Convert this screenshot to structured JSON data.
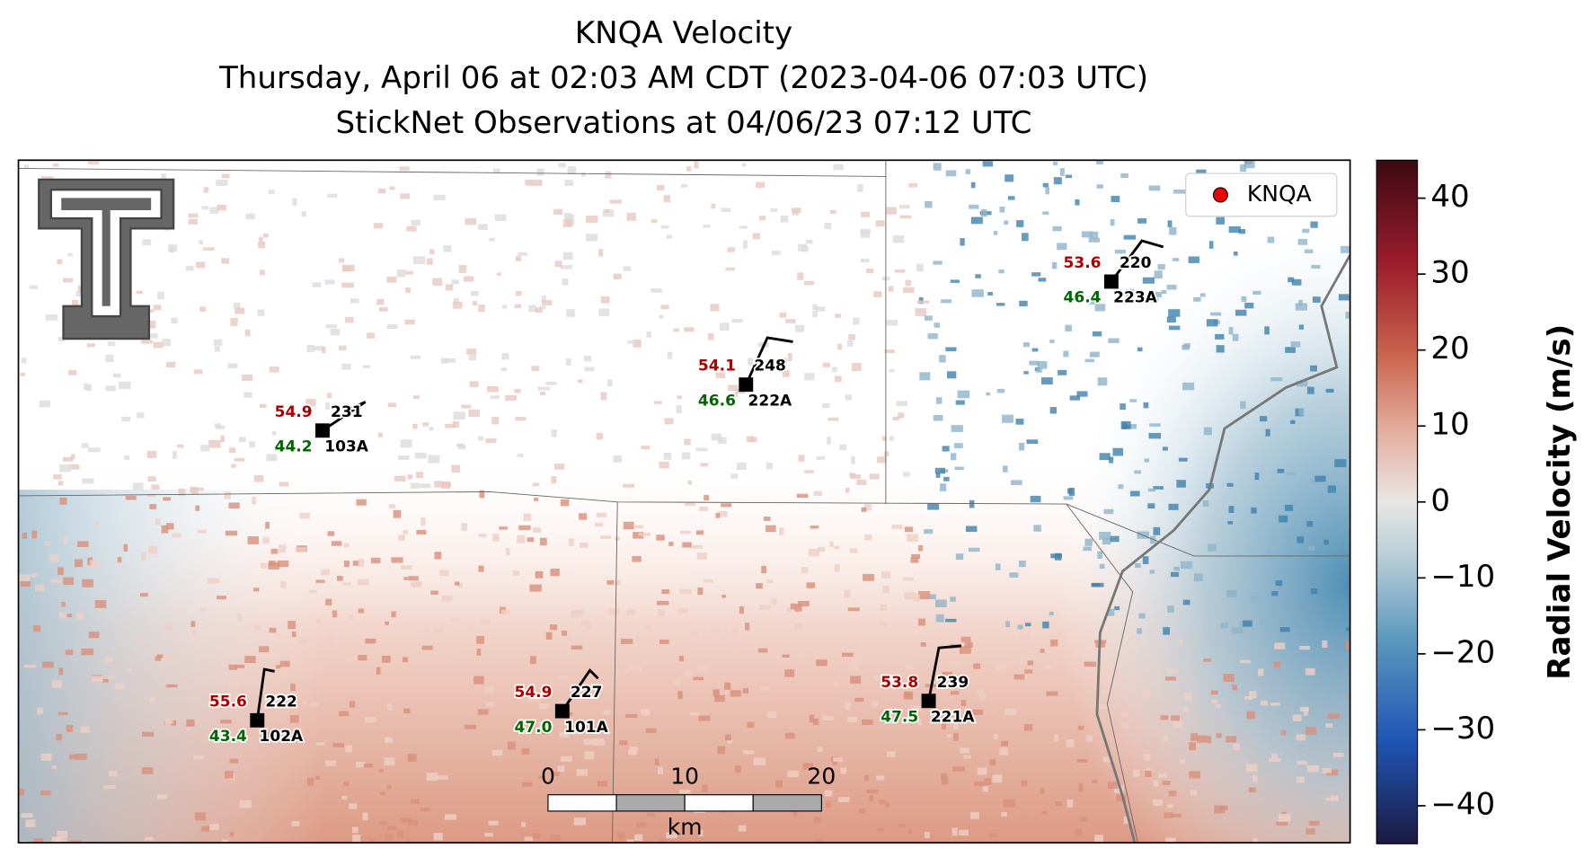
{
  "title": [
    "KNQA Velocity",
    "Thursday, April 06 at 02:03 AM CDT (2023-04-06 07:03 UTC)",
    "StickNet Observations at 04/06/23 07:12 UTC"
  ],
  "legend": "KNQA",
  "stations": [
    {
      "id": "103A",
      "temp": "54.9",
      "dew": "44.2",
      "value": "231"
    },
    {
      "id": "222A",
      "temp": "54.1",
      "dew": "46.6",
      "value": "248"
    },
    {
      "id": "223A",
      "temp": "53.6",
      "dew": "46.4",
      "value": "220"
    },
    {
      "id": "102A",
      "temp": "55.6",
      "dew": "43.4",
      "value": "222"
    },
    {
      "id": "101A",
      "temp": "54.9",
      "dew": "47.0",
      "value": "227"
    },
    {
      "id": "221A",
      "temp": "53.8",
      "dew": "47.5",
      "value": "239"
    }
  ],
  "scale_bar": {
    "labels": [
      "0",
      "10",
      "20"
    ],
    "unit": "km"
  },
  "colorbar": {
    "label": "Radial Velocity (m/s)",
    "ylim": [
      -45,
      45
    ],
    "yticks": [
      40,
      30,
      20,
      10,
      0,
      {
        "value": -10,
        "label": "−10"
      },
      {
        "value": -20,
        "label": "−20"
      },
      {
        "value": -30,
        "label": "−30"
      },
      {
        "value": -40,
        "label": "−40"
      }
    ]
  }
}
